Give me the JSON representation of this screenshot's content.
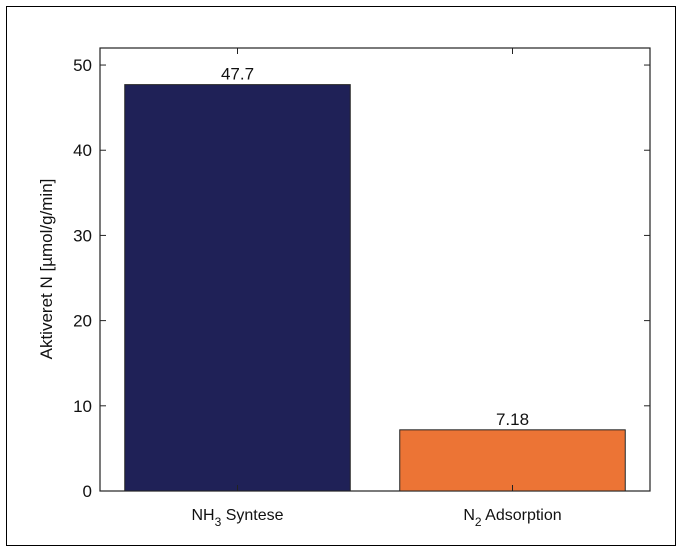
{
  "chart_data": {
    "type": "bar",
    "title": "",
    "xlabel": "",
    "ylabel": "Aktiveret N [µmol/g/min]",
    "categories": [
      {
        "prefix": "NH",
        "sub": "3",
        "suffix": " Syntese"
      },
      {
        "prefix": "N",
        "sub": "2",
        "suffix": " Adsorption"
      }
    ],
    "values": [
      47.7,
      7.18
    ],
    "data_labels": [
      "47.7",
      "7.18"
    ],
    "colors": [
      "#1f2157",
      "#ec7435"
    ],
    "ylim": [
      0,
      52
    ],
    "yticks": [
      0,
      10,
      20,
      30,
      40,
      50
    ],
    "grid": false,
    "legend": "none"
  }
}
